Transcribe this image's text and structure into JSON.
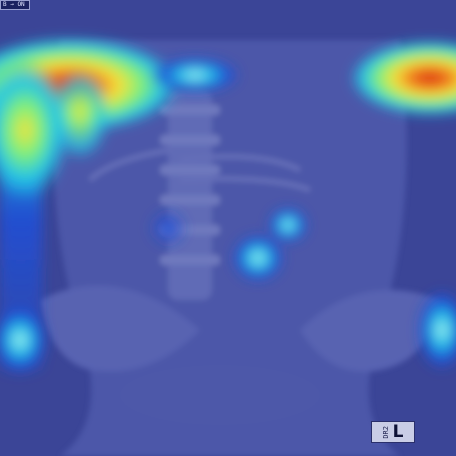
{
  "image": {
    "overlay": "heatmap",
    "colormap": [
      "#1a1a8c",
      "#1f4fd6",
      "#21c4e8",
      "#7ff07a",
      "#f5e23a",
      "#f07a1c",
      "#d62414"
    ],
    "base_tint": "#4a55a8"
  },
  "top_tag": {
    "text": "B → ON"
  },
  "marker": {
    "small_text": "DR2",
    "letter": "L"
  }
}
